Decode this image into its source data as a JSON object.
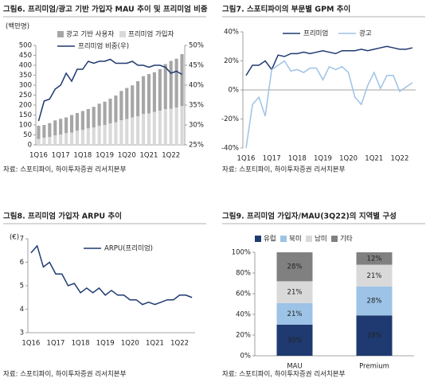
{
  "chart_data": [
    {
      "type": "bar",
      "stacked": true,
      "title": "그림6. 프리미엄/광고 기반 가입자 MAU 추이 및 프리미엄 비중",
      "y_label": "(백만명)",
      "source": "자료: 스포티파이, 하이투자증권 리서치본부",
      "categories": [
        "1Q16",
        null,
        null,
        null,
        "1Q17",
        null,
        null,
        null,
        "1Q18",
        null,
        null,
        null,
        "1Q19",
        null,
        null,
        null,
        "1Q20",
        null,
        null,
        null,
        "1Q21",
        null,
        null,
        null,
        "1Q22",
        null,
        null
      ],
      "series": [
        {
          "name": "프리미엄 가입자",
          "color": "#d9d9d9",
          "values": [
            30,
            36,
            40,
            48,
            52,
            59,
            62,
            71,
            75,
            83,
            87,
            96,
            100,
            108,
            113,
            124,
            130,
            138,
            144,
            155,
            158,
            165,
            172,
            180,
            182,
            188,
            195
          ]
        },
        {
          "name": "광고 기반 사용자",
          "color": "#a6a6a6",
          "values": [
            66,
            64,
            69,
            75,
            79,
            79,
            88,
            89,
            95,
            97,
            104,
            111,
            117,
            124,
            135,
            147,
            156,
            161,
            176,
            190,
            198,
            200,
            209,
            226,
            240,
            245,
            261
          ]
        },
        {
          "name": "프리미엄 비중(우)",
          "type": "line",
          "axis": "y2",
          "color": "#1f3a70",
          "values": [
            31,
            36,
            36.5,
            39,
            40,
            43,
            41,
            44,
            44,
            46,
            45.5,
            46,
            46,
            46.5,
            45.5,
            45.5,
            45.5,
            46,
            45,
            45,
            44.5,
            45,
            45,
            44.5,
            43,
            43.5,
            42.7
          ]
        }
      ],
      "ylim": [
        0,
        500
      ],
      "yticks": [
        0,
        50,
        100,
        150,
        200,
        250,
        300,
        350,
        400,
        450,
        500
      ],
      "y2lim": [
        25,
        50
      ],
      "y2ticks": [
        {
          "value": 25,
          "label": "25%"
        },
        {
          "value": 30,
          "label": "30%"
        },
        {
          "value": 35,
          "label": "35%"
        },
        {
          "value": 40,
          "label": "40%"
        },
        {
          "value": 45,
          "label": "45%"
        },
        {
          "value": 50,
          "label": "50%"
        }
      ]
    },
    {
      "type": "line",
      "title": "그림7. 스포티파이의 부문별 GPM 추이",
      "source": "자료: 스포티파이, 하이투자증권 리서치본부",
      "categories": [
        "1Q16",
        null,
        null,
        null,
        "1Q17",
        null,
        null,
        null,
        "1Q18",
        null,
        null,
        null,
        "1Q19",
        null,
        null,
        null,
        "1Q20",
        null,
        null,
        null,
        "1Q21",
        null,
        null,
        null,
        "1Q22",
        null,
        null
      ],
      "series": [
        {
          "name": "프리미엄",
          "color": "#1f3a70",
          "values": [
            10,
            17,
            17,
            20,
            14,
            24,
            23,
            25,
            25,
            26,
            25,
            26,
            27,
            26,
            25,
            27,
            27,
            27,
            28,
            27,
            28,
            29,
            30,
            29,
            28,
            28,
            29
          ]
        },
        {
          "name": "광고",
          "color": "#9dc3e6",
          "values": [
            -40,
            -10,
            -5,
            -18,
            14,
            17,
            20,
            13,
            14,
            12,
            15,
            15,
            7,
            16,
            14,
            16,
            12,
            -5,
            -10,
            3,
            12,
            1,
            10,
            10,
            -1,
            2,
            5
          ]
        }
      ],
      "ylim": [
        -40,
        40
      ],
      "yticks": [
        {
          "value": -40,
          "label": "-40%"
        },
        {
          "value": -20,
          "label": "-20%"
        },
        {
          "value": 0,
          "label": "0%"
        },
        {
          "value": 20,
          "label": "20%"
        },
        {
          "value": 40,
          "label": "40%"
        }
      ]
    },
    {
      "type": "line",
      "title": "그림8. 프리미엄 가입자 ARPU 추이",
      "y_label": "(€)",
      "source": "자료: 스포티파이, 하이투자증권 리서치본부",
      "categories": [
        "1Q16",
        null,
        null,
        null,
        "1Q17",
        null,
        null,
        null,
        "1Q18",
        null,
        null,
        null,
        "1Q19",
        null,
        null,
        null,
        "1Q20",
        null,
        null,
        null,
        "1Q21",
        null,
        null,
        null,
        "1Q22",
        null,
        null
      ],
      "series": [
        {
          "name": "ARPU(프리미엄)",
          "color": "#1f3a70",
          "values": [
            6.4,
            6.7,
            5.8,
            6.0,
            5.5,
            5.5,
            5.0,
            5.1,
            4.7,
            4.9,
            4.7,
            4.9,
            4.6,
            4.8,
            4.6,
            4.6,
            4.4,
            4.4,
            4.2,
            4.3,
            4.2,
            4.3,
            4.4,
            4.4,
            4.6,
            4.6,
            4.5
          ]
        }
      ],
      "ylim": [
        3,
        7
      ],
      "yticks": [
        3,
        4,
        5,
        6,
        7
      ]
    },
    {
      "type": "bar",
      "stacked": true,
      "title": "그림9. 프리미엄 가입자/MAU(3Q22)의 지역별 구성",
      "source": "자료: 스포티파이, 하이투자증권 리서치본부",
      "categories": [
        "MAU",
        "Premium"
      ],
      "series": [
        {
          "name": "유럽",
          "color": "#1f3a70",
          "values": [
            30,
            39
          ],
          "value_labels": [
            "30%",
            "39%"
          ]
        },
        {
          "name": "북미",
          "color": "#9dc3e6",
          "values": [
            21,
            28
          ],
          "value_labels": [
            "21%",
            "28%"
          ]
        },
        {
          "name": "남미",
          "color": "#d9d9d9",
          "values": [
            21,
            21
          ],
          "value_labels": [
            "21%",
            "21%"
          ]
        },
        {
          "name": "기타",
          "color": "#808080",
          "values": [
            28,
            12
          ],
          "value_labels": [
            "28%",
            "12%"
          ]
        }
      ],
      "ylim": [
        0,
        100
      ],
      "yticks": [
        {
          "value": 0,
          "label": "0%"
        },
        {
          "value": 20,
          "label": "20%"
        },
        {
          "value": 40,
          "label": "40%"
        },
        {
          "value": 60,
          "label": "60%"
        },
        {
          "value": 80,
          "label": "80%"
        },
        {
          "value": 100,
          "label": "100%"
        }
      ]
    }
  ]
}
